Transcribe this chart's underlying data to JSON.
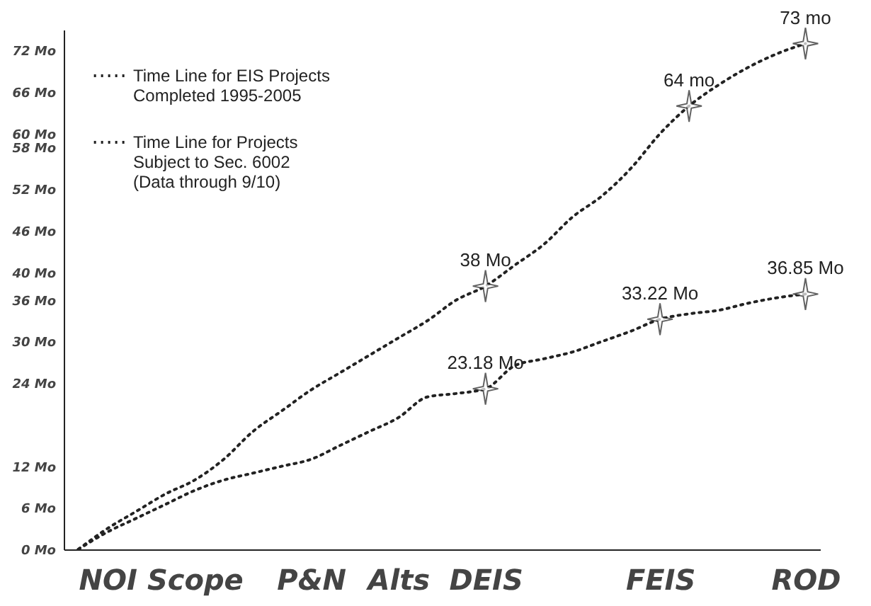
{
  "chart_data": {
    "type": "line",
    "categories": [
      null,
      "NOI",
      null,
      null,
      "Scope",
      null,
      null,
      null,
      "P&N",
      null,
      null,
      "Alts",
      null,
      null,
      "DEIS",
      null,
      null,
      null,
      null,
      null,
      "FEIS",
      null,
      null,
      null,
      null,
      "ROD"
    ],
    "series": [
      {
        "name": "Time Line for EIS Projects\nCompleted 1995-2005",
        "color": "#222222",
        "values": [
          0,
          3,
          5.5,
          8,
          10,
          13,
          17,
          20,
          23,
          25.5,
          28,
          30.5,
          33,
          36,
          38,
          41,
          44,
          48,
          51,
          55,
          60,
          64,
          67,
          69.5,
          71.5,
          73
        ],
        "value_labels": [
          null,
          null,
          null,
          null,
          null,
          null,
          null,
          null,
          null,
          null,
          null,
          null,
          null,
          null,
          "38 Mo",
          null,
          null,
          null,
          null,
          null,
          null,
          "64 mo",
          null,
          null,
          null,
          "73 mo"
        ]
      },
      {
        "name": "Time Line for Projects\nSubject to Sec. 6002\n(Data through 9/10)",
        "color": "#222222",
        "values": [
          0,
          2.5,
          4.5,
          6.5,
          8.5,
          10,
          11,
          12,
          13,
          15,
          17,
          19,
          22,
          22.5,
          23.18,
          26.5,
          27.5,
          28.5,
          30,
          31.5,
          33.22,
          34,
          34.5,
          35.5,
          36.3,
          36.85
        ],
        "value_labels": [
          null,
          null,
          null,
          null,
          null,
          null,
          null,
          null,
          null,
          null,
          null,
          null,
          null,
          null,
          "23.18 Mo",
          null,
          null,
          null,
          null,
          null,
          "33.22 Mo",
          null,
          null,
          null,
          null,
          "36.85 Mo"
        ]
      }
    ],
    "ylim": [
      0,
      75
    ],
    "yticks": [
      {
        "value": 0,
        "label": "0 Mo"
      },
      {
        "value": 6,
        "label": "6 Mo"
      },
      {
        "value": 12,
        "label": "12 Mo"
      },
      {
        "value": 24,
        "label": "24 Mo"
      },
      {
        "value": 30,
        "label": "30 Mo"
      },
      {
        "value": 36,
        "label": "36 Mo"
      },
      {
        "value": 40,
        "label": "40 Mo"
      },
      {
        "value": 46,
        "label": "46 Mo"
      },
      {
        "value": 52,
        "label": "52 Mo"
      },
      {
        "value": 58,
        "label": "58 Mo"
      },
      {
        "value": 60,
        "label": "60 Mo"
      },
      {
        "value": 66,
        "label": "66 Mo"
      },
      {
        "value": 72,
        "label": "72 Mo"
      }
    ],
    "legend": "top left",
    "line_style": "dotted",
    "grid": false
  }
}
